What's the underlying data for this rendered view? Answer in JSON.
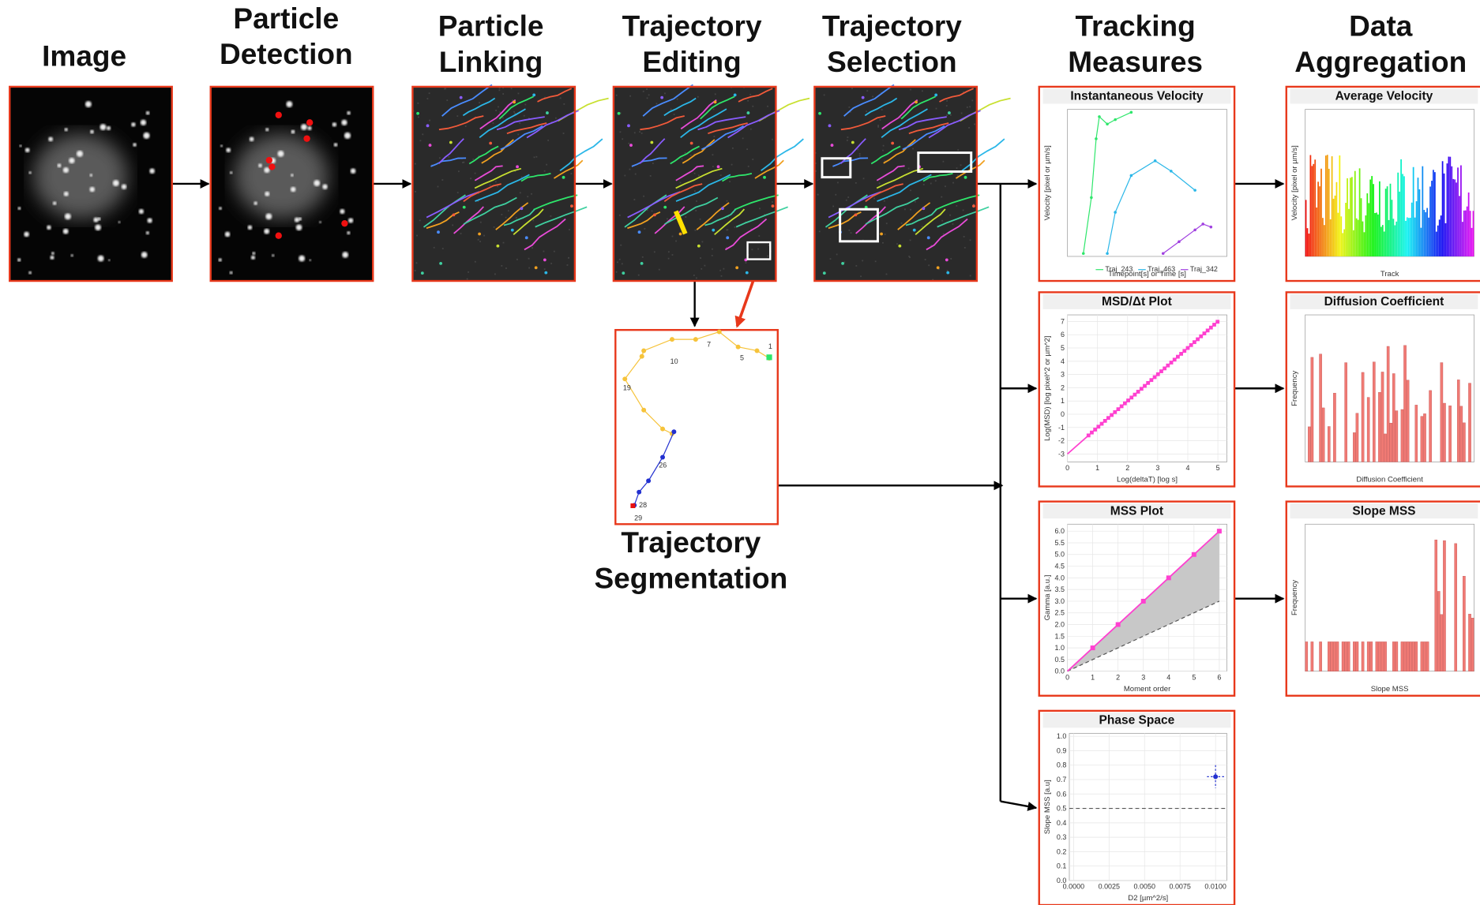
{
  "stages": [
    {
      "title": [
        "Image"
      ]
    },
    {
      "title": [
        "Particle",
        "Detection"
      ]
    },
    {
      "title": [
        "Particle",
        "Linking"
      ]
    },
    {
      "title": [
        "Trajectory",
        "Editing"
      ]
    },
    {
      "title": [
        "Trajectory",
        "Selection"
      ]
    },
    {
      "title": [
        "Tracking",
        "Measures"
      ]
    },
    {
      "title": [
        "Data",
        "Aggregation"
      ]
    }
  ],
  "segmentation": {
    "title": [
      "Trajectory",
      "Segmentation"
    ],
    "labels": [
      "1",
      "5",
      "7",
      "10",
      "19",
      "26",
      "28",
      "29"
    ]
  },
  "tracking_plots": [
    {
      "title": "Instantaneous Velocity",
      "x_label": "Timepoint[s] or Time [s]",
      "y_label": "Velocity [pixel or µm/s]",
      "legend": [
        "Traj_243",
        "Traj_463",
        "Traj_342"
      ]
    },
    {
      "title": "MSD/Δt Plot",
      "x_label": "Log(deltaT) [log s]",
      "y_label": "Log(MSD) [log pixel^2 or µm^2]",
      "xticks": [
        "0",
        "1",
        "2",
        "3",
        "4",
        "5"
      ],
      "yticks": [
        "-3",
        "-2",
        "-1",
        "0",
        "1",
        "2",
        "3",
        "4",
        "5",
        "6",
        "7"
      ]
    },
    {
      "title": "MSS Plot",
      "x_label": "Moment order",
      "y_label": "Gamma [a.u.]",
      "xticks": [
        "0",
        "1",
        "2",
        "3",
        "4",
        "5",
        "6"
      ],
      "yticks": [
        "0.0",
        "0.5",
        "1.0",
        "1.5",
        "2.0",
        "2.5",
        "3.0",
        "3.5",
        "4.0",
        "4.5",
        "5.0",
        "5.5",
        "6.0"
      ]
    },
    {
      "title": "Phase Space",
      "x_label": "D2 [µm^2/s]",
      "y_label": "Slope MSS [a.u]",
      "xticks": [
        "0.0000",
        "0.0025",
        "0.0050",
        "0.0075",
        "0.0100"
      ],
      "yticks": [
        "0.0",
        "0.1",
        "0.2",
        "0.3",
        "0.4",
        "0.5",
        "0.6",
        "0.7",
        "0.8",
        "0.9",
        "1.0"
      ]
    }
  ],
  "aggregation_plots": [
    {
      "title": "Average Velocity",
      "x_label": "Track",
      "y_label": "Velocity [pixel or µm/s]"
    },
    {
      "title": "Diffusion Coefficient",
      "x_label": "Diffusion Coefficient",
      "y_label": "Frequency"
    },
    {
      "title": "Slope MSS",
      "x_label": "Slope MSS",
      "y_label": "Frequency"
    }
  ]
}
